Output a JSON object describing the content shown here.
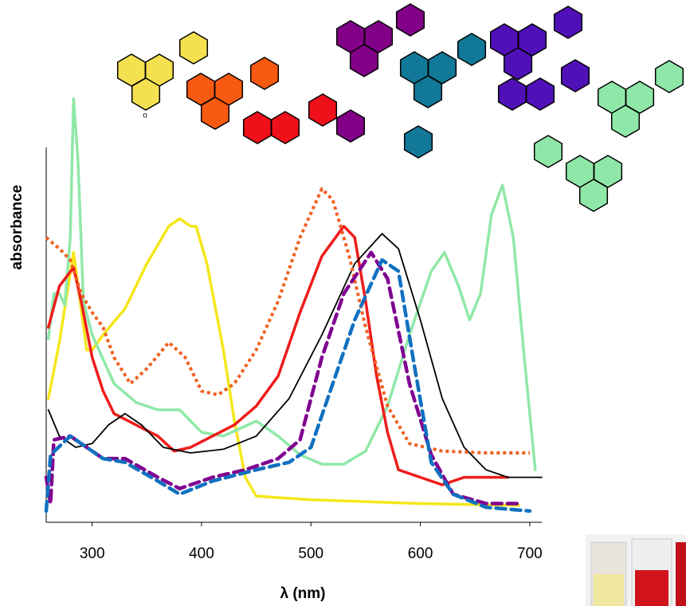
{
  "chart_data": {
    "type": "line",
    "xlabel": "λ (nm)",
    "ylabel": "absorbance",
    "annotation": "o",
    "xlim": [
      258,
      711
    ],
    "ylim": [
      0,
      1.15
    ],
    "xticks": [
      300,
      400,
      500,
      600,
      700
    ],
    "series": [
      {
        "color": "#f5e61a",
        "dash": "solid",
        "x": [
          260,
          270,
          283,
          295,
          300,
          310,
          330,
          350,
          370,
          380,
          390,
          395,
          405,
          420,
          430,
          440,
          450,
          500,
          600,
          690
        ],
        "values": [
          0.33,
          0.48,
          0.72,
          0.46,
          0.46,
          0.5,
          0.57,
          0.69,
          0.79,
          0.81,
          0.79,
          0.79,
          0.69,
          0.46,
          0.27,
          0.12,
          0.07,
          0.06,
          0.05,
          0.045
        ]
      },
      {
        "color": "#90e8a8",
        "dash": "solid",
        "x": [
          260,
          265,
          270,
          275,
          280,
          283,
          287,
          292,
          300,
          320,
          340,
          360,
          380,
          400,
          420,
          450,
          470,
          490,
          510,
          530,
          550,
          570,
          590,
          610,
          622,
          635,
          645,
          655,
          665,
          675,
          685,
          695,
          705
        ],
        "values": [
          0.49,
          0.61,
          0.61,
          0.58,
          0.76,
          1.13,
          0.97,
          0.59,
          0.5,
          0.37,
          0.32,
          0.3,
          0.3,
          0.24,
          0.23,
          0.27,
          0.23,
          0.18,
          0.155,
          0.155,
          0.19,
          0.31,
          0.5,
          0.67,
          0.72,
          0.63,
          0.54,
          0.61,
          0.82,
          0.9,
          0.76,
          0.44,
          0.14
        ]
      },
      {
        "color": "#ee1c1c",
        "dash": "solid",
        "x": [
          260,
          270,
          283,
          290,
          300,
          310,
          320,
          340,
          360,
          375,
          390,
          410,
          430,
          450,
          470,
          490,
          510,
          530,
          540,
          550,
          560,
          570,
          580,
          600,
          620,
          640,
          660,
          680
        ],
        "values": [
          0.52,
          0.63,
          0.68,
          0.59,
          0.44,
          0.35,
          0.29,
          0.26,
          0.23,
          0.19,
          0.2,
          0.23,
          0.26,
          0.31,
          0.39,
          0.56,
          0.71,
          0.79,
          0.76,
          0.59,
          0.39,
          0.24,
          0.14,
          0.12,
          0.1,
          0.12,
          0.12,
          0.12
        ]
      },
      {
        "color": "#000000",
        "dash": "thin",
        "x": [
          260,
          270,
          285,
          300,
          315,
          330,
          345,
          365,
          390,
          420,
          450,
          480,
          510,
          540,
          565,
          580,
          600,
          620,
          640,
          660,
          680,
          711
        ],
        "values": [
          0.3,
          0.23,
          0.2,
          0.21,
          0.26,
          0.29,
          0.26,
          0.2,
          0.185,
          0.195,
          0.23,
          0.33,
          0.5,
          0.69,
          0.77,
          0.73,
          0.54,
          0.33,
          0.2,
          0.14,
          0.12,
          0.12
        ]
      },
      {
        "color": "#f06020",
        "dash": "dotted",
        "x": [
          258,
          270,
          280,
          290,
          300,
          310,
          320,
          335,
          350,
          370,
          385,
          400,
          415,
          430,
          450,
          470,
          490,
          510,
          520,
          535,
          550,
          570,
          590,
          620,
          660,
          700
        ],
        "values": [
          0.76,
          0.73,
          0.7,
          0.61,
          0.56,
          0.52,
          0.44,
          0.37,
          0.41,
          0.48,
          0.44,
          0.35,
          0.34,
          0.37,
          0.46,
          0.59,
          0.76,
          0.89,
          0.86,
          0.71,
          0.52,
          0.31,
          0.21,
          0.19,
          0.185,
          0.185
        ]
      },
      {
        "color": "#800090",
        "dash": "dashed",
        "x": [
          258,
          262,
          265,
          280,
          295,
          310,
          330,
          360,
          380,
          410,
          440,
          470,
          490,
          510,
          530,
          555,
          570,
          590,
          610,
          630,
          660,
          690
        ],
        "values": [
          0.12,
          0.05,
          0.22,
          0.23,
          0.2,
          0.17,
          0.17,
          0.12,
          0.09,
          0.12,
          0.14,
          0.17,
          0.22,
          0.44,
          0.61,
          0.72,
          0.65,
          0.37,
          0.18,
          0.075,
          0.05,
          0.05
        ]
      },
      {
        "color": "#1070c0",
        "dash": "dashed",
        "x": [
          258,
          262,
          280,
          295,
          310,
          330,
          360,
          380,
          410,
          450,
          480,
          500,
          520,
          540,
          565,
          580,
          595,
          610,
          630,
          660,
          700
        ],
        "values": [
          0.03,
          0.18,
          0.23,
          0.2,
          0.17,
          0.16,
          0.11,
          0.075,
          0.11,
          0.14,
          0.16,
          0.2,
          0.37,
          0.54,
          0.7,
          0.67,
          0.41,
          0.16,
          0.075,
          0.04,
          0.03
        ]
      }
    ]
  }
}
